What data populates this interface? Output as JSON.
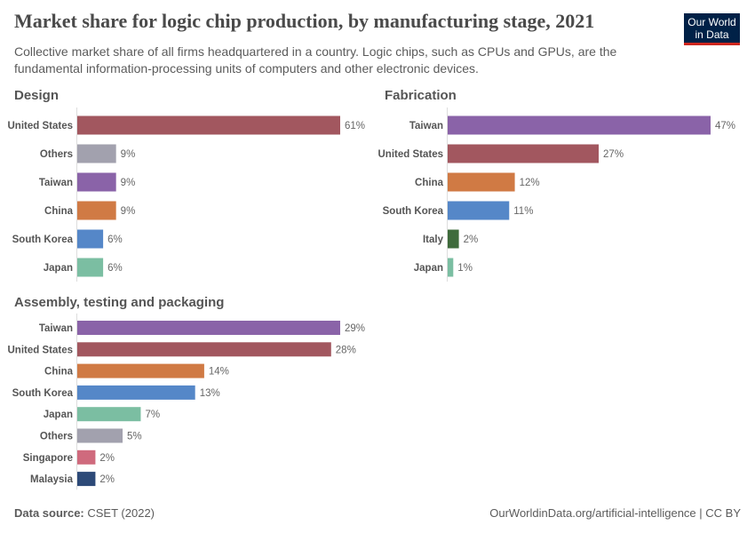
{
  "header": {
    "title": "Market share for logic chip production, by manufacturing stage, 2021",
    "subtitle": "Collective market share of all firms headquartered in a country. Logic chips, such as CPUs and GPUs, are the fundamental information-processing units of computers and other electronic devices.",
    "logo": "Our World in Data"
  },
  "colors": {
    "United States": "#a2575f",
    "Others": "#a2a1ae",
    "Taiwan": "#8a63a8",
    "China": "#d07a44",
    "South Korea": "#5587c8",
    "Japan": "#7bbea2",
    "Italy": "#3f6b3c",
    "Singapore": "#cf6a7d",
    "Malaysia": "#2d4a78"
  },
  "chart_data": [
    {
      "type": "bar",
      "orientation": "horizontal",
      "title": "Design",
      "unit": "%",
      "categories": [
        "United States",
        "Others",
        "Taiwan",
        "China",
        "South Korea",
        "Japan"
      ],
      "values": [
        61,
        9,
        9,
        9,
        6,
        6
      ]
    },
    {
      "type": "bar",
      "orientation": "horizontal",
      "title": "Fabrication",
      "unit": "%",
      "categories": [
        "Taiwan",
        "United States",
        "China",
        "South Korea",
        "Italy",
        "Japan"
      ],
      "values": [
        47,
        27,
        12,
        11,
        2,
        1
      ]
    },
    {
      "type": "bar",
      "orientation": "horizontal",
      "title": "Assembly, testing and packaging",
      "unit": "%",
      "categories": [
        "Taiwan",
        "United States",
        "China",
        "South Korea",
        "Japan",
        "Others",
        "Singapore",
        "Malaysia"
      ],
      "values": [
        29,
        28,
        14,
        13,
        7,
        5,
        2,
        2
      ]
    }
  ],
  "footer": {
    "source_label": "Data source:",
    "source": "CSET (2022)",
    "credit": "OurWorldinData.org/artificial-intelligence | CC BY"
  }
}
